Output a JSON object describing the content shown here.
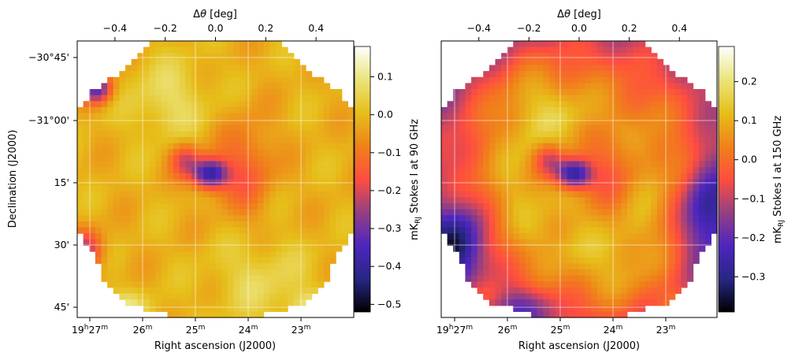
{
  "chart_data": [
    {
      "type": "heatmap",
      "panel": "left",
      "xlabel": "Right ascension (J2000)",
      "ylabel": "Declination (J2000)",
      "top_xlabel_prefix": "Δ",
      "top_xlabel_sym": "θ",
      "top_xlabel_suffix": " [deg]",
      "top_ticks": [
        -0.4,
        -0.2,
        0.0,
        0.2,
        0.4
      ],
      "top_tick_labels": [
        "−0.4",
        "−0.2",
        "0.0",
        "0.2",
        "0.4"
      ],
      "ra_ticks": [
        {
          "value": "19h27m",
          "main": "19",
          "s1": "h",
          "mid": "27",
          "s2": "m"
        },
        {
          "value": "26m",
          "main": "26",
          "s1": "m"
        },
        {
          "value": "25m",
          "main": "25",
          "s1": "m"
        },
        {
          "value": "24m",
          "main": "24",
          "s1": "m"
        },
        {
          "value": "23m",
          "main": "23",
          "s1": "m"
        }
      ],
      "dec_ticks": [
        "−30°45'",
        "−31°00'",
        "15'",
        "30'",
        "45'"
      ],
      "colorbar": {
        "label_prefix": "mK",
        "label_sub": "RJ",
        "label_suffix": " Stokes I at 90 GHz",
        "range": [
          -0.52,
          0.18
        ],
        "ticks": [
          0.1,
          0.0,
          -0.1,
          -0.2,
          -0.3,
          -0.4,
          -0.5
        ],
        "tick_labels": [
          "0.1",
          "0.0",
          "−0.1",
          "−0.2",
          "−0.3",
          "−0.4",
          "−0.5"
        ]
      },
      "colormap": "CMRmap"
    },
    {
      "type": "heatmap",
      "panel": "right",
      "xlabel": "Right ascension (J2000)",
      "ylabel": "",
      "top_xlabel_prefix": "Δ",
      "top_xlabel_sym": "θ",
      "top_xlabel_suffix": " [deg]",
      "top_ticks": [
        -0.4,
        -0.2,
        0.0,
        0.2,
        0.4
      ],
      "top_tick_labels": [
        "−0.4",
        "−0.2",
        "0.0",
        "0.2",
        "0.4"
      ],
      "ra_ticks": [
        {
          "value": "19h27m",
          "main": "19",
          "s1": "h",
          "mid": "27",
          "s2": "m"
        },
        {
          "value": "26m",
          "main": "26",
          "s1": "m"
        },
        {
          "value": "25m",
          "main": "25",
          "s1": "m"
        },
        {
          "value": "24m",
          "main": "24",
          "s1": "m"
        },
        {
          "value": "23m",
          "main": "23",
          "s1": "m"
        }
      ],
      "colorbar": {
        "label_prefix": "mK",
        "label_sub": "RJ",
        "label_suffix": " Stokes I at 150 GHz",
        "range": [
          -0.39,
          0.29
        ],
        "ticks": [
          0.2,
          0.1,
          0.0,
          -0.1,
          -0.2,
          -0.3
        ],
        "tick_labels": [
          "0.2",
          "0.1",
          "0.0",
          "−0.1",
          "−0.2",
          "−0.3"
        ]
      },
      "colormap": "CMRmap"
    }
  ]
}
